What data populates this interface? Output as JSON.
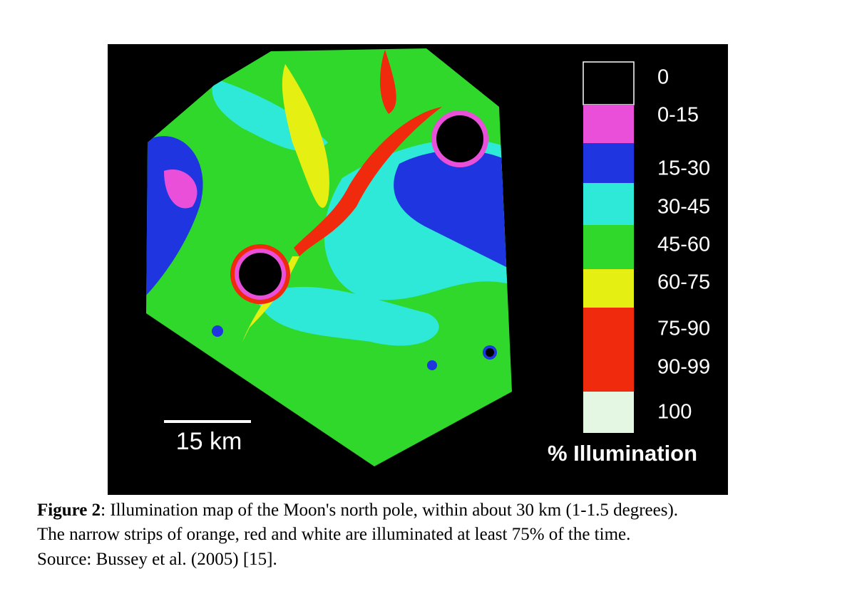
{
  "figure": {
    "scale_bar": "15 km",
    "legend": {
      "title": "% Illumination",
      "items": [
        {
          "label": "0",
          "color": "#000000"
        },
        {
          "label": "0-15",
          "color": "#e94fd8"
        },
        {
          "label": "15-30",
          "color": "#1f35e0"
        },
        {
          "label": "30-45",
          "color": "#2ee8d8"
        },
        {
          "label": "45-60",
          "color": "#2fd82a"
        },
        {
          "label": "60-75",
          "color": "#e6ef12"
        },
        {
          "label": "75-90",
          "color": "#f02a0c"
        },
        {
          "label": "90-99",
          "color": "#f02a0c"
        },
        {
          "label": "100",
          "color": "#e4f7e2"
        }
      ]
    }
  },
  "caption": {
    "label": "Figure 2",
    "lines": [
      ": Illumination map of the Moon's north pole, within about 30 km (1-1.5 degrees).",
      "The narrow strips of orange, red and white are illuminated at least 75% of the time.",
      "Source: Bussey et al. (2005) [15]."
    ]
  }
}
